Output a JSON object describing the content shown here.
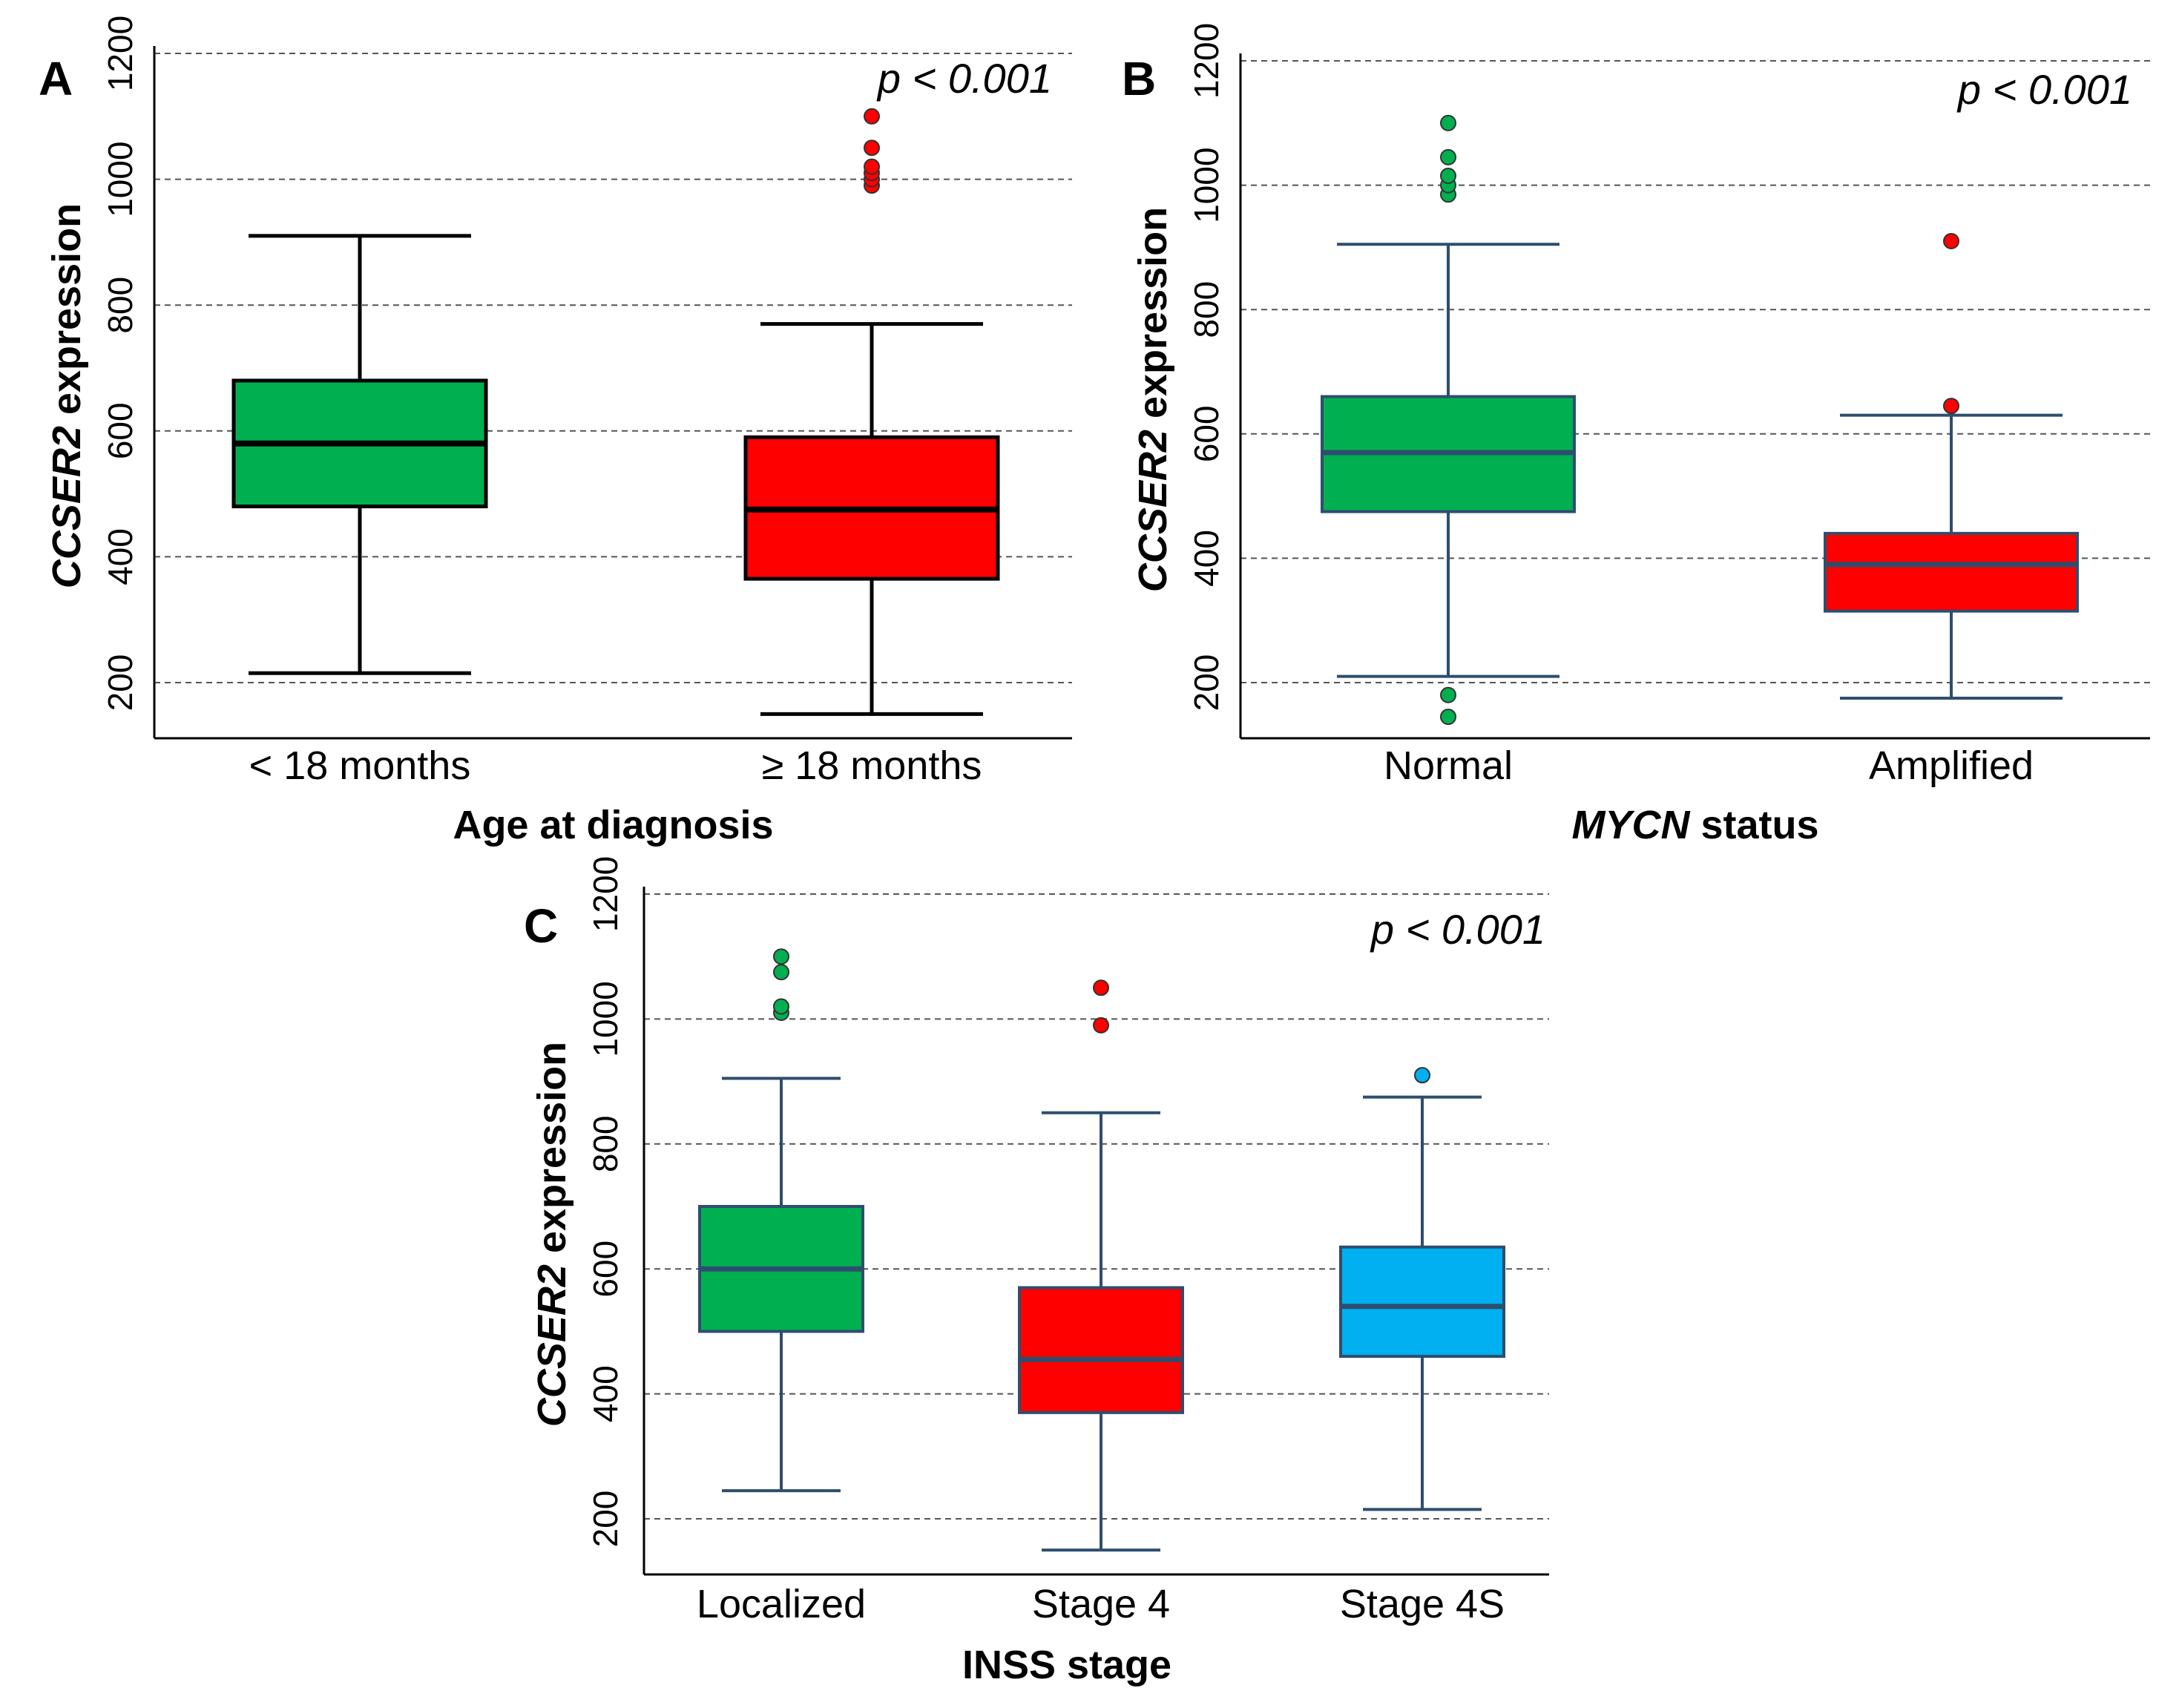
{
  "chart_data": [
    {
      "type": "box",
      "panel": "A",
      "title": "",
      "xlabel_parts": [
        {
          "text": "Age at diagnosis",
          "italic": false
        }
      ],
      "ylabel_parts": [
        {
          "text": "CCSER2",
          "italic": true
        },
        {
          "text": " expression",
          "italic": false
        }
      ],
      "ylim": [
        110,
        1250
      ],
      "yticks": [
        200,
        400,
        600,
        800,
        1000,
        1200
      ],
      "grid": true,
      "annotation": "p < 0.001",
      "style": "black",
      "categories": [
        "<  18 months",
        "≥ 18 months"
      ],
      "boxes": [
        {
          "name": "<  18 months",
          "color": "#00b050",
          "whisker_low": 215,
          "q1": 480,
          "median": 580,
          "q3": 680,
          "whisker_high": 910,
          "outliers": []
        },
        {
          "name": "≥ 18 months",
          "color": "#ff0000",
          "whisker_low": 150,
          "q1": 365,
          "median": 475,
          "q3": 590,
          "whisker_high": 770,
          "outliers": [
            990,
            1000,
            1010,
            1020,
            1050,
            1100
          ]
        }
      ]
    },
    {
      "type": "box",
      "panel": "B",
      "title": "",
      "xlabel_parts": [
        {
          "text": "MYCN",
          "italic": true
        },
        {
          "text": " status",
          "italic": false
        }
      ],
      "ylabel_parts": [
        {
          "text": "CCSER2",
          "italic": true
        },
        {
          "text": " expression",
          "italic": false
        }
      ],
      "ylim": [
        110,
        1250
      ],
      "yticks": [
        200,
        400,
        600,
        800,
        1000,
        1200
      ],
      "grid": true,
      "annotation": "p < 0.001",
      "style": "blue",
      "categories": [
        "Normal",
        "Amplified"
      ],
      "boxes": [
        {
          "name": "Normal",
          "color": "#00b050",
          "whisker_low": 210,
          "q1": 475,
          "median": 570,
          "q3": 660,
          "whisker_high": 905,
          "outliers": [
            145,
            180,
            985,
            1000,
            1015,
            1045,
            1100
          ]
        },
        {
          "name": "Amplified",
          "color": "#ff0000",
          "whisker_low": 175,
          "q1": 315,
          "median": 390,
          "q3": 440,
          "whisker_high": 630,
          "outliers": [
            645,
            910
          ]
        }
      ]
    },
    {
      "type": "box",
      "panel": "C",
      "title": "",
      "xlabel_parts": [
        {
          "text": "INSS stage",
          "italic": false
        }
      ],
      "ylabel_parts": [
        {
          "text": "CCSER2",
          "italic": true
        },
        {
          "text": " expression",
          "italic": false
        }
      ],
      "ylim": [
        110,
        1250
      ],
      "yticks": [
        200,
        400,
        600,
        800,
        1000,
        1200
      ],
      "grid": true,
      "annotation": "p < 0.001",
      "style": "blue",
      "categories": [
        "Localized",
        "Stage 4",
        "Stage 4S"
      ],
      "boxes": [
        {
          "name": "Localized",
          "color": "#00b050",
          "whisker_low": 245,
          "q1": 500,
          "median": 600,
          "q3": 700,
          "whisker_high": 905,
          "outliers": [
            1010,
            1020,
            1075,
            1100
          ]
        },
        {
          "name": "Stage 4",
          "color": "#ff0000",
          "whisker_low": 150,
          "q1": 370,
          "median": 455,
          "q3": 570,
          "whisker_high": 850,
          "outliers": [
            990,
            1050
          ]
        },
        {
          "name": "Stage 4S",
          "color": "#00b0f0",
          "whisker_low": 215,
          "q1": 460,
          "median": 540,
          "q3": 635,
          "whisker_high": 875,
          "outliers": [
            910
          ]
        }
      ]
    }
  ]
}
